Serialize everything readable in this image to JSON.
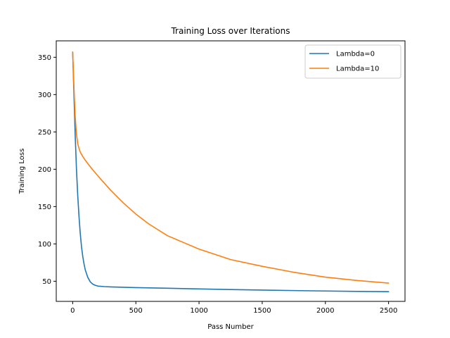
{
  "chart_data": {
    "type": "line",
    "title": "Training Loss over Iterations",
    "xlabel": "Pass Number",
    "ylabel": "Training Loss",
    "xlim": [
      -130,
      2630
    ],
    "ylim": [
      23,
      372
    ],
    "xticks": [
      0,
      500,
      1000,
      1500,
      2000,
      2500
    ],
    "yticks": [
      50,
      100,
      150,
      200,
      250,
      300,
      350
    ],
    "grid": false,
    "legend_position": "top-right",
    "series": [
      {
        "name": "Lambda=0",
        "color": "#1f77b4",
        "x": [
          0,
          10,
          20,
          30,
          40,
          50,
          60,
          70,
          80,
          90,
          100,
          120,
          140,
          160,
          180,
          200,
          250,
          300,
          400,
          500,
          750,
          1000,
          1250,
          1500,
          1750,
          2000,
          2250,
          2500
        ],
        "y": [
          357,
          300,
          245,
          200,
          165,
          137,
          114,
          96,
          83,
          73,
          65,
          55,
          49,
          46,
          44.5,
          43.5,
          42.8,
          42.4,
          41.9,
          41.5,
          40.6,
          39.7,
          38.9,
          38.2,
          37.5,
          36.9,
          36.4,
          36.0
        ]
      },
      {
        "name": "Lambda=10",
        "color": "#ff7f0e",
        "x": [
          0,
          10,
          20,
          30,
          40,
          50,
          60,
          80,
          100,
          150,
          200,
          300,
          400,
          500,
          600,
          750,
          1000,
          1250,
          1500,
          1750,
          2000,
          2250,
          2500
        ],
        "y": [
          357,
          310,
          270,
          247,
          234,
          228,
          223,
          217,
          212,
          201,
          191,
          172,
          155,
          140,
          127,
          111,
          93,
          79,
          70,
          62,
          55.5,
          51,
          47.5
        ]
      }
    ]
  }
}
